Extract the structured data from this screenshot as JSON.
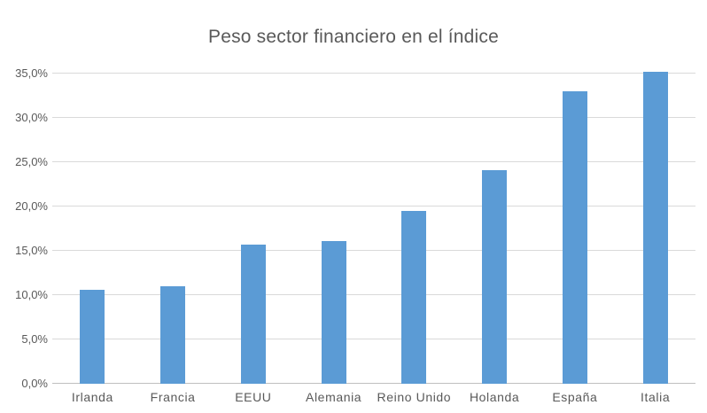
{
  "chart_data": {
    "type": "bar",
    "title": "Peso sector financiero en el índice",
    "categories": [
      "Irlanda",
      "Francia",
      "EEUU",
      "Alemania",
      "Reino Unido",
      "Holanda",
      "España",
      "Italia"
    ],
    "values": [
      10.6,
      11.0,
      15.7,
      16.1,
      19.5,
      24.1,
      33.0,
      35.2
    ],
    "unit": "%",
    "y_tick_labels": [
      "0,0%",
      "5,0%",
      "10,0%",
      "15,0%",
      "20,0%",
      "25,0%",
      "30,0%",
      "35,0%"
    ],
    "y_tick_values": [
      0,
      5,
      10,
      15,
      20,
      25,
      30,
      35
    ],
    "ylim": [
      0,
      35
    ],
    "xlabel": "",
    "ylabel": "",
    "grid": true,
    "legend_position": "none",
    "colors": {
      "bar": "#5B9BD5",
      "gridline": "#D9D9D9",
      "axis_line": "#BFBFBF",
      "text": "#595959",
      "background": "#FFFFFF"
    }
  }
}
